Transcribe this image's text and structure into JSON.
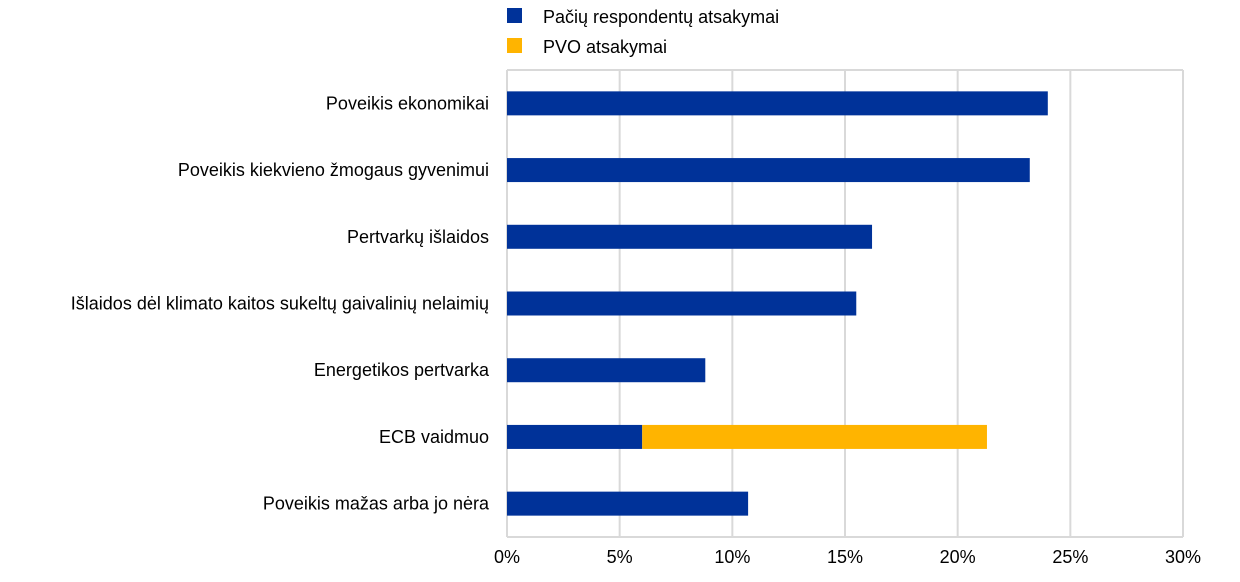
{
  "chart_data": {
    "type": "bar",
    "orientation": "horizontal",
    "stacked": true,
    "categories": [
      "Poveikis ekonomikai",
      "Poveikis kiekvieno žmogaus gyvenimui",
      "Pertvarkų išlaidos",
      "Išlaidos dėl klimato kaitos sukeltų gaivalinių nelaimių",
      "Energetikos pertvarka",
      "ECB vaidmuo",
      "Poveikis mažas arba jo nėra"
    ],
    "series": [
      {
        "name": "Pačių respondentų  atsakymai",
        "color": "#003299",
        "values": [
          24.0,
          23.2,
          16.2,
          15.5,
          8.8,
          6.0,
          10.7
        ]
      },
      {
        "name": "PVO atsakymai",
        "color": "#FFB400",
        "values": [
          0,
          0,
          0,
          0,
          0,
          15.3,
          0
        ]
      }
    ],
    "xlim": [
      0,
      30
    ],
    "xticks": [
      0,
      5,
      10,
      15,
      20,
      25,
      30
    ],
    "xtick_labels": [
      "0%",
      "5%",
      "10%",
      "15%",
      "20%",
      "25%",
      "30%"
    ],
    "grid": true,
    "legend_position": "top"
  }
}
